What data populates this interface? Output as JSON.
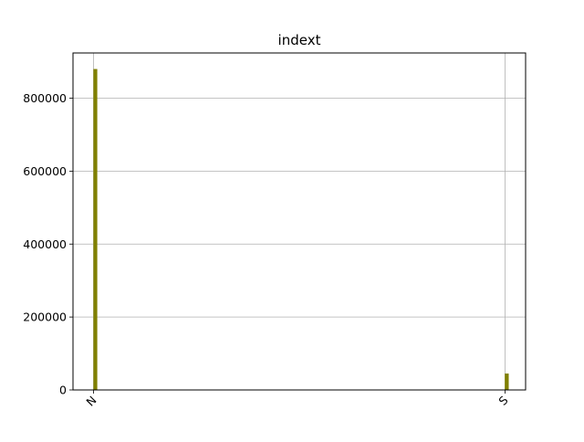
{
  "chart_data": {
    "type": "bar",
    "title": "indext",
    "xlabel": "",
    "ylabel": "",
    "categories": [
      "N",
      "S"
    ],
    "values": [
      880000,
      45000
    ],
    "x_positions": [
      0,
      1
    ],
    "xlim": [
      -0.05,
      1.05
    ],
    "ylim": [
      0,
      924000
    ],
    "yticks": [
      0,
      200000,
      400000,
      600000,
      800000
    ],
    "ytick_labels": [
      "0",
      "200000",
      "400000",
      "600000",
      "800000"
    ],
    "xtick_labels": [
      "N",
      "S"
    ],
    "xtick_rotation": 45,
    "grid": true,
    "legend": "none",
    "bar_color": "#808000"
  }
}
